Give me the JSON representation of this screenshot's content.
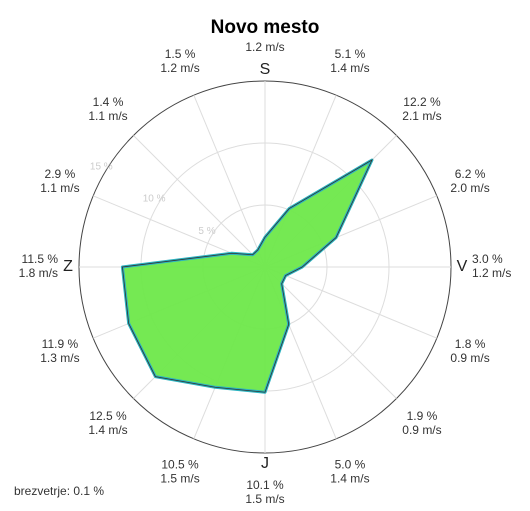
{
  "chart_data": {
    "type": "windrose",
    "title": "Novo mesto",
    "directions": [
      "S",
      null,
      null,
      null,
      "V",
      null,
      null,
      null,
      "J",
      null,
      null,
      null,
      "Z",
      null,
      null,
      null
    ],
    "values": [
      2.4,
      5.1,
      12.2,
      6.2,
      3.0,
      1.8,
      1.9,
      5.0,
      10.1,
      10.5,
      12.5,
      11.9,
      11.5,
      2.9,
      1.4,
      1.5
    ],
    "value_labels": [
      null,
      "5.1 %",
      "12.2 %",
      "6.2 %",
      "3.0 %",
      "1.8 %",
      "1.9 %",
      "5.0 %",
      "10.1 %",
      "10.5 %",
      "12.5 %",
      "11.9 %",
      "11.5 %",
      "2.9 %",
      "1.4 %",
      "1.5 %"
    ],
    "speeds": [
      1.2,
      1.4,
      2.1,
      2.0,
      1.2,
      0.9,
      0.9,
      1.4,
      1.5,
      1.5,
      1.4,
      1.3,
      1.8,
      1.1,
      1.1,
      1.2
    ],
    "speed_labels": [
      "1.2 m/s",
      "1.4 m/s",
      "2.1 m/s",
      "2.0 m/s",
      "1.2 m/s",
      "0.9 m/s",
      "0.9 m/s",
      "1.4 m/s",
      "1.5 m/s",
      "1.5 m/s",
      "1.4 m/s",
      "1.3 m/s",
      "1.8 m/s",
      "1.1 m/s",
      "1.1 m/s",
      "1.2 m/s"
    ],
    "color": "#6ee84a",
    "ylim": [
      0,
      15
    ],
    "yticks": [
      {
        "value": 5,
        "label": "5 %"
      },
      {
        "value": 10,
        "label": "10 %"
      },
      {
        "value": 15,
        "label": "15 %"
      }
    ],
    "calm": {
      "value": 0.1,
      "label": "brezvetrje: 0.1 %"
    }
  }
}
